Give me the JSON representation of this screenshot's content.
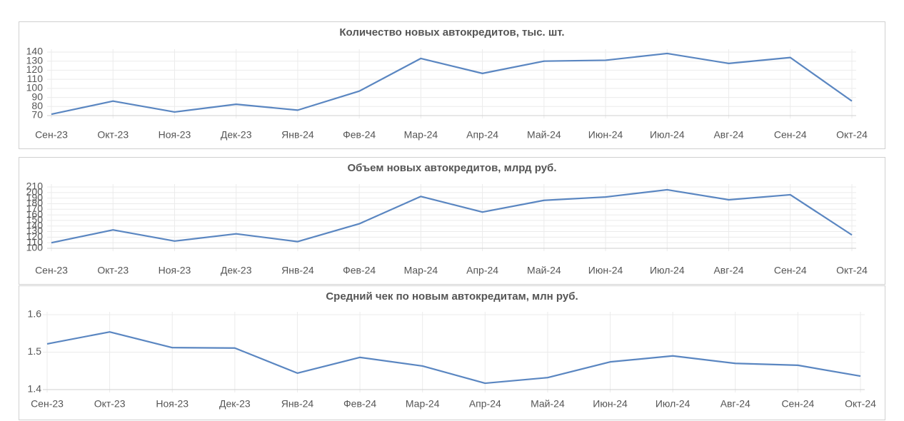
{
  "chart_data": [
    {
      "type": "line",
      "title": "Количество новых автокредитов, тыс. шт.",
      "categories": [
        "Сен-23",
        "Окт-23",
        "Ноя-23",
        "Дек-23",
        "Янв-24",
        "Фев-24",
        "Мар-24",
        "Апр-24",
        "Май-24",
        "Июн-24",
        "Июл-24",
        "Авг-24",
        "Сен-24",
        "Окт-24"
      ],
      "series": [
        {
          "color": "#5a86c1",
          "values": [
            71.5,
            86,
            74,
            82.5,
            76,
            97,
            133,
            116.5,
            130,
            131,
            138.5,
            127.5,
            134,
            86
          ]
        }
      ],
      "ylim": [
        70,
        140
      ],
      "yticks": [
        70,
        80,
        90,
        100,
        110,
        120,
        130,
        140
      ],
      "grid": true
    },
    {
      "type": "line",
      "title": "Объем новых автокредитов, млрд руб.",
      "categories": [
        "Сен-23",
        "Окт-23",
        "Ноя-23",
        "Дек-23",
        "Янв-24",
        "Фев-24",
        "Мар-24",
        "Апр-24",
        "Май-24",
        "Июн-24",
        "Июл-24",
        "Авг-24",
        "Сен-24",
        "Окт-24"
      ],
      "series": [
        {
          "color": "#5a86c1",
          "values": [
            110,
            133,
            113,
            126,
            112,
            144,
            193,
            165,
            186,
            192,
            205,
            187,
            196,
            124
          ]
        }
      ],
      "ylim": [
        100,
        210
      ],
      "yticks": [
        100,
        110,
        120,
        130,
        140,
        150,
        160,
        170,
        180,
        190,
        200,
        210
      ],
      "grid": true
    },
    {
      "type": "line",
      "title": "Средний чек по новым автокредитам, млн руб.",
      "categories": [
        "Сен-23",
        "Окт-23",
        "Ноя-23",
        "Дек-23",
        "Янв-24",
        "Фев-24",
        "Мар-24",
        "Апр-24",
        "Май-24",
        "Июн-24",
        "Июл-24",
        "Авг-24",
        "Сен-24",
        "Окт-24"
      ],
      "series": [
        {
          "color": "#5a86c1",
          "values": [
            1.522,
            1.554,
            1.512,
            1.511,
            1.444,
            1.486,
            1.463,
            1.417,
            1.432,
            1.474,
            1.49,
            1.47,
            1.465,
            1.436
          ]
        }
      ],
      "ylim": [
        1.4,
        1.6
      ],
      "yticks": [
        1.4,
        1.5,
        1.6
      ],
      "grid": true
    }
  ]
}
